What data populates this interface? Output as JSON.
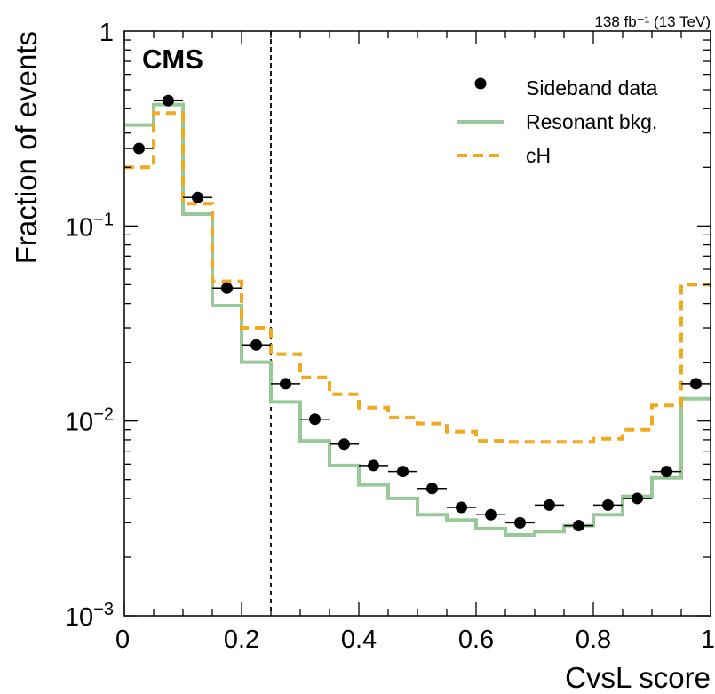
{
  "chart_data": {
    "type": "step",
    "title": "",
    "experiment_label": "CMS",
    "luminosity_label": "138 fb⁻¹ (13 TeV)",
    "xlabel": "CvsL score",
    "ylabel": "Fraction of events",
    "xlim": [
      0,
      1
    ],
    "ylim": [
      0.001,
      1
    ],
    "yscale": "log",
    "x_ticks": [
      {
        "value": 0,
        "label": "0"
      },
      {
        "value": 0.2,
        "label": "0.2"
      },
      {
        "value": 0.4,
        "label": "0.4"
      },
      {
        "value": 0.6,
        "label": "0.6"
      },
      {
        "value": 0.8,
        "label": "0.8"
      },
      {
        "value": 1,
        "label": "1"
      }
    ],
    "y_ticks": [
      {
        "value": 1,
        "base": "1",
        "exp": ""
      },
      {
        "value": 0.1,
        "base": "10",
        "exp": "−1"
      },
      {
        "value": 0.01,
        "base": "10",
        "exp": "−2"
      },
      {
        "value": 0.001,
        "base": "10",
        "exp": "−3"
      }
    ],
    "vertical_line": {
      "x": 0.25,
      "style": "dashed",
      "color": "#000000"
    },
    "bin_edges": [
      0,
      0.05,
      0.1,
      0.15,
      0.2,
      0.25,
      0.3,
      0.35,
      0.4,
      0.45,
      0.5,
      0.55,
      0.6,
      0.65,
      0.7,
      0.75,
      0.8,
      0.85,
      0.9,
      0.95,
      1.0
    ],
    "legend_position": "top-right",
    "series": [
      {
        "name": "Sideband data",
        "kind": "points",
        "color": "#000000",
        "x": [
          0.025,
          0.075,
          0.125,
          0.175,
          0.225,
          0.275,
          0.325,
          0.375,
          0.425,
          0.475,
          0.525,
          0.575,
          0.625,
          0.675,
          0.725,
          0.775,
          0.825,
          0.875,
          0.925,
          0.975
        ],
        "values": [
          0.25,
          0.44,
          0.14,
          0.048,
          0.0245,
          0.0155,
          0.0102,
          0.0076,
          0.0059,
          0.0055,
          0.0045,
          0.0036,
          0.0033,
          0.003,
          0.0037,
          0.0029,
          0.0037,
          0.004,
          0.0055,
          0.0155
        ]
      },
      {
        "name": "Resonant bkg.",
        "kind": "step",
        "color": "#98c999",
        "values": [
          0.33,
          0.42,
          0.115,
          0.039,
          0.02,
          0.0125,
          0.0079,
          0.0059,
          0.0047,
          0.004,
          0.0033,
          0.0031,
          0.0028,
          0.0026,
          0.0027,
          0.0029,
          0.0033,
          0.0041,
          0.0051,
          0.013
        ]
      },
      {
        "name": "cH",
        "kind": "step-dashed",
        "color": "#f2a91d",
        "values": [
          0.2,
          0.38,
          0.13,
          0.052,
          0.03,
          0.022,
          0.0167,
          0.0137,
          0.0117,
          0.0104,
          0.0097,
          0.0088,
          0.0079,
          0.0078,
          0.0078,
          0.0078,
          0.0081,
          0.009,
          0.012,
          0.05
        ]
      }
    ]
  }
}
